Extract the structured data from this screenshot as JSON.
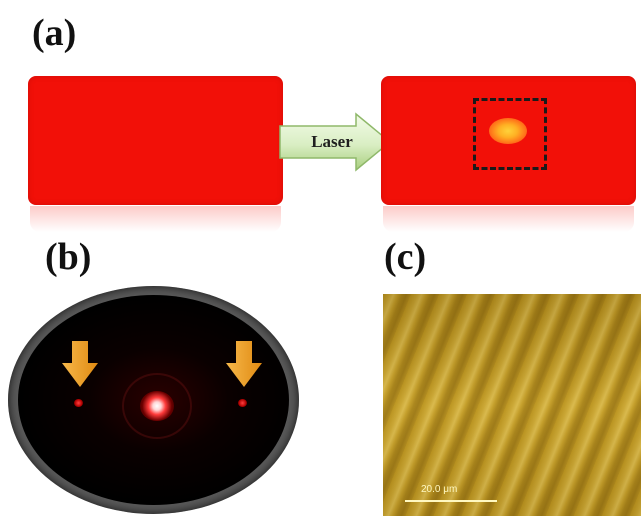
{
  "panels": {
    "a": {
      "label": "(a)",
      "arrow_text": "Laser"
    },
    "b": {
      "label": "(b)"
    },
    "c": {
      "label": "(c)",
      "scale_bar_text": "20.0 μm"
    }
  },
  "colors": {
    "sample_red": "#f21008",
    "arrow_green": "#d9eec3",
    "pointer_orange": "#f5a623",
    "afm_gold": "#c9a533"
  },
  "icons": {
    "arrow": "right-arrow-icon",
    "pointer": "down-arrow-icon"
  }
}
